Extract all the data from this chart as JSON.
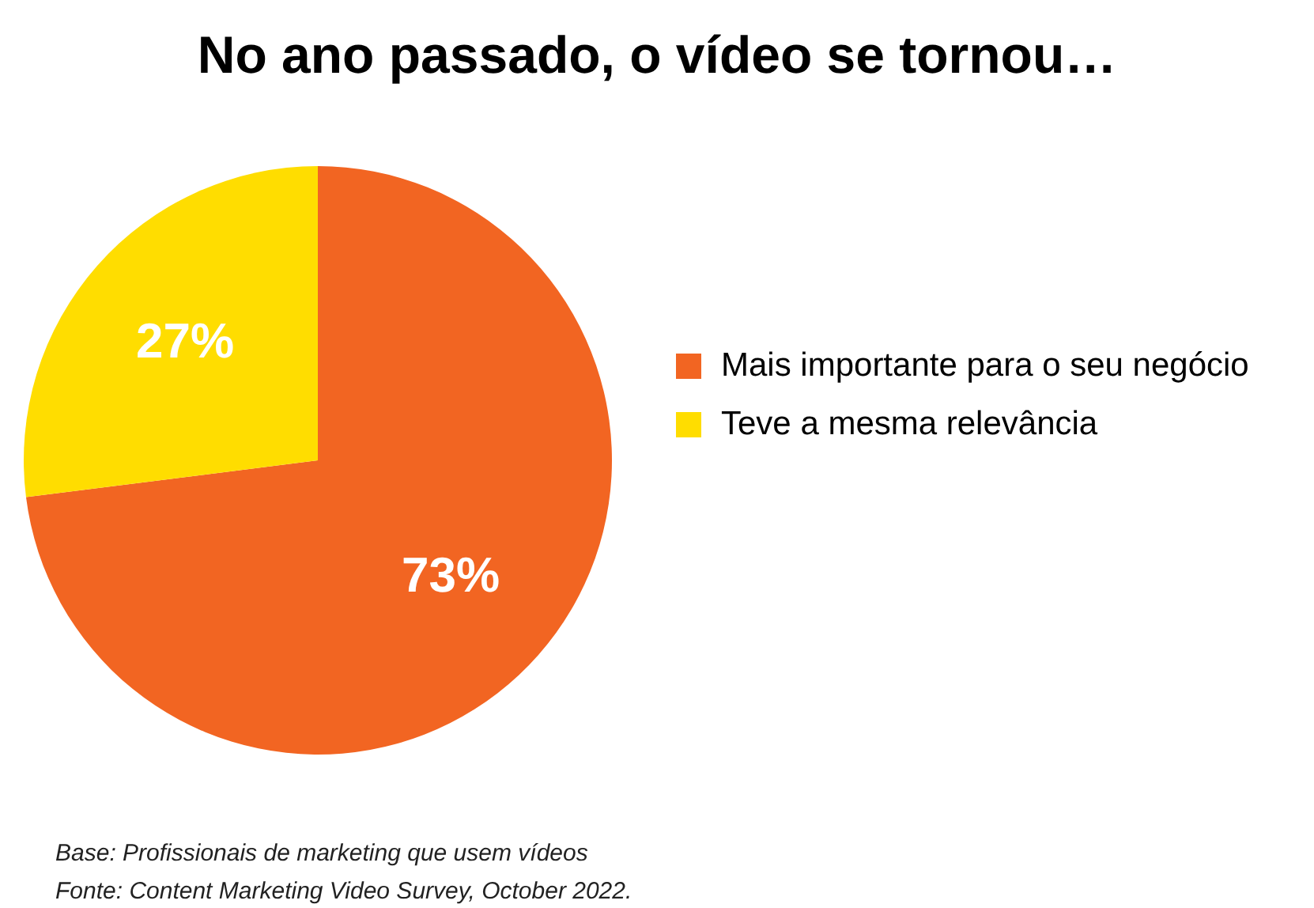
{
  "chart_data": {
    "type": "pie",
    "title": "No ano passado, o vídeo se tornou…",
    "categories": [
      "Mais importante para o seu negócio",
      "Teve a mesma relevância"
    ],
    "values": [
      73,
      27
    ],
    "colors": [
      "#f26522",
      "#ffdd00"
    ],
    "value_labels": [
      "73%",
      "27%"
    ],
    "legend": "right",
    "annotations": [
      "Base: Profissionais de marketing que usem vídeos",
      "Fonte: Content Marketing Video Survey, October 2022."
    ]
  }
}
